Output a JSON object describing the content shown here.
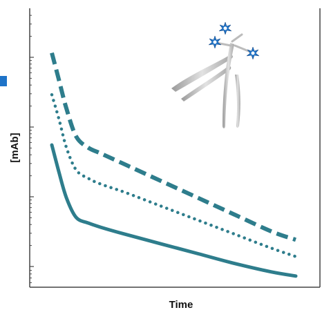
{
  "chart_data": {
    "type": "line",
    "title": "",
    "xlabel": "Time",
    "ylabel": "[mAb]",
    "y_scale": "log",
    "y_ticks_labeled": false,
    "x_ticks_labeled": false,
    "grid": false,
    "legend": "none",
    "series": [
      {
        "style": "dashed",
        "color": "#2e7d8c",
        "x": [
          0,
          0.03,
          0.06,
          0.1,
          0.15,
          0.2,
          0.3,
          0.45,
          0.6,
          0.75,
          0.9,
          1.0
        ],
        "y": [
          0.84,
          0.74,
          0.64,
          0.54,
          0.5,
          0.48,
          0.44,
          0.38,
          0.32,
          0.26,
          0.2,
          0.17
        ]
      },
      {
        "style": "dotted",
        "color": "#2e7d8c",
        "x": [
          0,
          0.03,
          0.06,
          0.1,
          0.15,
          0.2,
          0.3,
          0.45,
          0.6,
          0.75,
          0.9,
          1.0
        ],
        "y": [
          0.69,
          0.6,
          0.5,
          0.42,
          0.39,
          0.37,
          0.34,
          0.29,
          0.24,
          0.19,
          0.14,
          0.11
        ]
      },
      {
        "style": "solid",
        "color": "#2e7d8c",
        "x": [
          0,
          0.03,
          0.06,
          0.1,
          0.15,
          0.2,
          0.3,
          0.45,
          0.6,
          0.75,
          0.9,
          1.0
        ],
        "y": [
          0.51,
          0.41,
          0.32,
          0.25,
          0.23,
          0.215,
          0.19,
          0.155,
          0.12,
          0.085,
          0.055,
          0.04
        ]
      }
    ]
  },
  "colors": {
    "series": "#2e7d8c",
    "axis": "#444444",
    "marker": "#1565c0",
    "antibody": "#c8c8c8",
    "payload": "#1e73c8"
  },
  "decorations": {
    "side_marker": "blue-square",
    "illustration": "antibody-drug-conjugate-icon"
  }
}
